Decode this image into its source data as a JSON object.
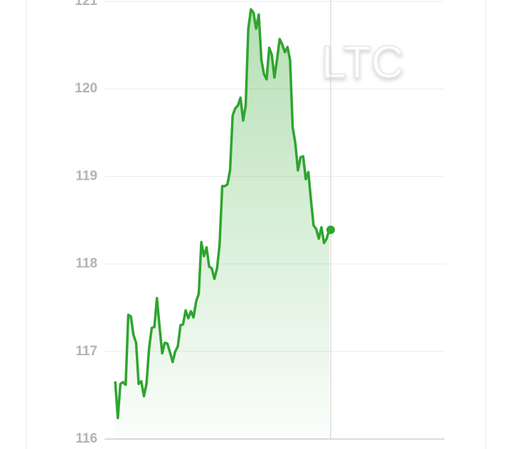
{
  "chart_data": {
    "type": "area-line",
    "watermark": "LTC",
    "color": "#2ea52e",
    "grid": true,
    "ylim": [
      116,
      121
    ],
    "yticks": [
      116,
      117,
      118,
      119,
      120,
      121
    ],
    "values": [
      116.66,
      116.24,
      116.63,
      116.65,
      116.62,
      117.42,
      117.4,
      117.19,
      117.1,
      116.63,
      116.66,
      116.49,
      116.63,
      117.04,
      117.27,
      117.28,
      117.61,
      117.28,
      116.98,
      117.1,
      117.09,
      116.99,
      116.88,
      117.0,
      117.06,
      117.3,
      117.31,
      117.47,
      117.38,
      117.46,
      117.39,
      117.57,
      117.66,
      118.25,
      118.09,
      118.19,
      117.97,
      117.95,
      117.83,
      117.95,
      118.22,
      118.89,
      118.89,
      118.91,
      119.07,
      119.7,
      119.78,
      119.81,
      119.9,
      119.64,
      119.81,
      120.69,
      120.91,
      120.87,
      120.69,
      120.85,
      120.33,
      120.17,
      120.11,
      120.47,
      120.39,
      120.13,
      120.34,
      120.57,
      120.51,
      120.42,
      120.48,
      120.33,
      119.56,
      119.38,
      119.07,
      119.22,
      119.23,
      118.97,
      119.05,
      118.73,
      118.44,
      118.4,
      118.29,
      118.42,
      118.24,
      118.29,
      118.39
    ]
  }
}
